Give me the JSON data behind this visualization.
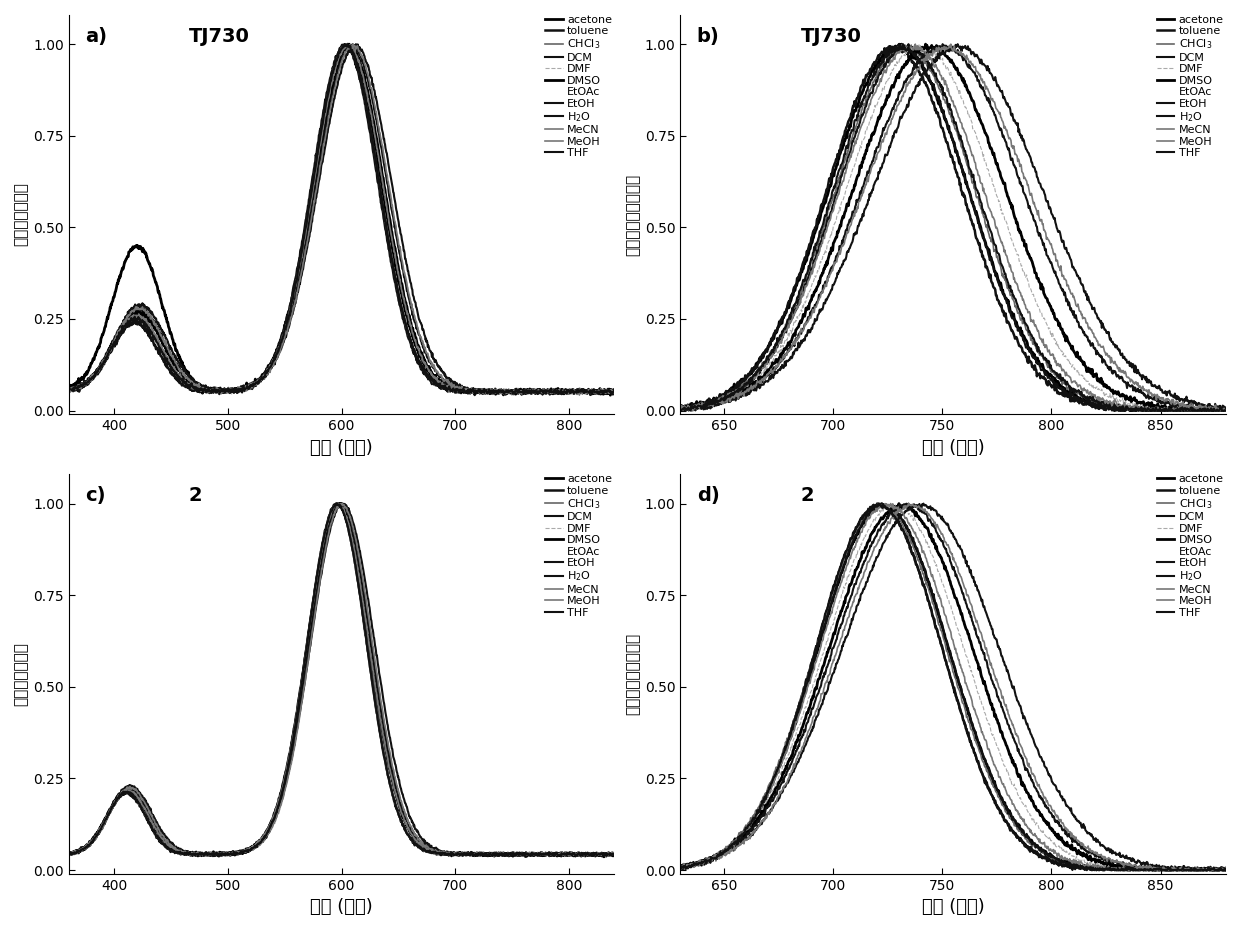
{
  "panel_labels": [
    "a)",
    "b)",
    "c)",
    "d)"
  ],
  "panel_titles": [
    "TJ730",
    "TJ730",
    "2",
    "2"
  ],
  "xlabel": "波长 (纳米)",
  "ylabel_abs": "吸收强度归一化",
  "ylabel_em": "荧光发射强度归一化",
  "abs_xlim": [
    360,
    840
  ],
  "em_xlim": [
    630,
    880
  ],
  "ylim": [
    -0.01,
    1.08
  ],
  "yticks": [
    0.0,
    0.25,
    0.5,
    0.75,
    1.0
  ],
  "abs_xticks": [
    400,
    500,
    600,
    700,
    800
  ],
  "em_xticks": [
    650,
    700,
    750,
    800,
    850
  ],
  "legend_labels": [
    "acetone",
    "toluene",
    "CHCl$_3$",
    "DCM",
    "DMF",
    "DMSO",
    "EtOAc",
    "EtOH",
    "H$_2$O",
    "MeCN",
    "MeOH",
    "THF"
  ],
  "line_colors": [
    "#000000",
    "#111111",
    "#666666",
    "#111111",
    "#aaaaaa",
    "#000000",
    "#ffffff",
    "#111111",
    "#111111",
    "#777777",
    "#777777",
    "#111111"
  ],
  "line_widths": [
    2.0,
    1.8,
    1.2,
    1.5,
    0.8,
    2.0,
    1.0,
    1.5,
    1.5,
    1.2,
    1.2,
    1.5
  ],
  "line_styles": [
    "-",
    "-",
    "-",
    "-",
    "--",
    "-",
    "-",
    "-",
    "-",
    "-",
    "-",
    "-"
  ],
  "show_line": [
    true,
    true,
    true,
    true,
    true,
    true,
    false,
    true,
    true,
    true,
    true,
    true
  ],
  "background_color": "#ffffff"
}
